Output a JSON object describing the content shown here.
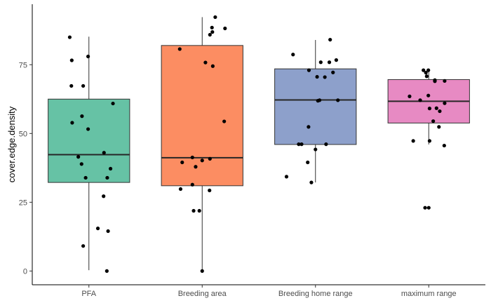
{
  "chart_data": {
    "type": "box",
    "xlabel": "",
    "ylabel": "cover.edge.density",
    "ylim": [
      -5,
      97
    ],
    "yticks": [
      0,
      25,
      50,
      75
    ],
    "grid": false,
    "legend": "none",
    "categories": [
      "PFA",
      "Breeding area",
      "Breeding home range",
      "maximum range"
    ],
    "colors": [
      "#66c2a5",
      "#fc8d62",
      "#8da0cb",
      "#e78ac3"
    ],
    "boxes": [
      {
        "min": 0.3,
        "q1": 32.2,
        "median": 42.3,
        "q3": 62.5,
        "max": 85.2
      },
      {
        "min": 0.0,
        "q1": 31.0,
        "median": 41.2,
        "q3": 82.0,
        "max": 92.3
      },
      {
        "min": 32.2,
        "q1": 46.0,
        "median": 62.2,
        "q3": 73.5,
        "max": 84.0
      },
      {
        "min": 46.0,
        "q1": 53.8,
        "median": 61.7,
        "q3": 69.6,
        "max": 73.0
      }
    ],
    "points": [
      {
        "group": 0,
        "x": -0.47,
        "y": 85.0
      },
      {
        "group": 0,
        "x": -0.42,
        "y": 76.6
      },
      {
        "group": 0,
        "x": -0.02,
        "y": 78.0
      },
      {
        "group": 0,
        "x": -0.43,
        "y": 67.3
      },
      {
        "group": 0,
        "x": -0.14,
        "y": 67.3
      },
      {
        "group": 0,
        "x": 0.59,
        "y": 60.9
      },
      {
        "group": 0,
        "x": -0.17,
        "y": 56.3
      },
      {
        "group": 0,
        "x": -0.41,
        "y": 53.9
      },
      {
        "group": 0,
        "x": -0.02,
        "y": 51.6
      },
      {
        "group": 0,
        "x": 0.37,
        "y": 43.0
      },
      {
        "group": 0,
        "x": -0.26,
        "y": 41.5
      },
      {
        "group": 0,
        "x": -0.18,
        "y": 38.9
      },
      {
        "group": 0,
        "x": 0.53,
        "y": 37.2
      },
      {
        "group": 0,
        "x": -0.08,
        "y": 33.9
      },
      {
        "group": 0,
        "x": 0.45,
        "y": 33.9
      },
      {
        "group": 0,
        "x": 0.36,
        "y": 27.2
      },
      {
        "group": 0,
        "x": 0.22,
        "y": 15.5
      },
      {
        "group": 0,
        "x": 0.47,
        "y": 14.5
      },
      {
        "group": 0,
        "x": -0.14,
        "y": 9.1
      },
      {
        "group": 0,
        "x": 0.44,
        "y": 0.0
      },
      {
        "group": 1,
        "x": 0.32,
        "y": 92.3
      },
      {
        "group": 1,
        "x": 0.24,
        "y": 88.5
      },
      {
        "group": 1,
        "x": 0.56,
        "y": 88.2
      },
      {
        "group": 1,
        "x": 0.25,
        "y": 86.9
      },
      {
        "group": 1,
        "x": 0.19,
        "y": 85.9
      },
      {
        "group": 1,
        "x": -0.55,
        "y": 80.7
      },
      {
        "group": 1,
        "x": 0.08,
        "y": 75.8
      },
      {
        "group": 1,
        "x": 0.26,
        "y": 74.5
      },
      {
        "group": 1,
        "x": 0.54,
        "y": 54.4
      },
      {
        "group": 1,
        "x": -0.24,
        "y": 41.3
      },
      {
        "group": 1,
        "x": 0.19,
        "y": 40.8
      },
      {
        "group": 1,
        "x": 0.0,
        "y": 40.2
      },
      {
        "group": 1,
        "x": -0.49,
        "y": 39.5
      },
      {
        "group": 1,
        "x": -0.16,
        "y": 37.9
      },
      {
        "group": 1,
        "x": -0.24,
        "y": 31.4
      },
      {
        "group": 1,
        "x": -0.53,
        "y": 29.8
      },
      {
        "group": 1,
        "x": 0.18,
        "y": 29.3
      },
      {
        "group": 1,
        "x": -0.21,
        "y": 21.9
      },
      {
        "group": 1,
        "x": -0.07,
        "y": 21.9
      },
      {
        "group": 1,
        "x": 0.0,
        "y": 0.0
      },
      {
        "group": 2,
        "x": 0.36,
        "y": 84.1
      },
      {
        "group": 2,
        "x": -0.55,
        "y": 78.7
      },
      {
        "group": 2,
        "x": 0.51,
        "y": 76.7
      },
      {
        "group": 2,
        "x": 0.13,
        "y": 75.9
      },
      {
        "group": 2,
        "x": 0.34,
        "y": 75.9
      },
      {
        "group": 2,
        "x": -0.16,
        "y": 73.0
      },
      {
        "group": 2,
        "x": 0.43,
        "y": 72.2
      },
      {
        "group": 2,
        "x": 0.04,
        "y": 70.6
      },
      {
        "group": 2,
        "x": 0.23,
        "y": 70.5
      },
      {
        "group": 2,
        "x": 0.1,
        "y": 62.1
      },
      {
        "group": 2,
        "x": 0.06,
        "y": 61.9
      },
      {
        "group": 2,
        "x": 0.55,
        "y": 62.1
      },
      {
        "group": 2,
        "x": -0.17,
        "y": 52.4
      },
      {
        "group": 2,
        "x": -0.41,
        "y": 46.1
      },
      {
        "group": 2,
        "x": -0.34,
        "y": 46.1
      },
      {
        "group": 2,
        "x": 0.26,
        "y": 46.1
      },
      {
        "group": 2,
        "x": 0.0,
        "y": 44.2
      },
      {
        "group": 2,
        "x": -0.19,
        "y": 39.5
      },
      {
        "group": 2,
        "x": -0.71,
        "y": 34.3
      },
      {
        "group": 2,
        "x": -0.1,
        "y": 32.2
      },
      {
        "group": 3,
        "x": -0.13,
        "y": 73.0
      },
      {
        "group": 3,
        "x": -0.01,
        "y": 73.0
      },
      {
        "group": 3,
        "x": -0.07,
        "y": 72.1
      },
      {
        "group": 3,
        "x": -0.05,
        "y": 70.8
      },
      {
        "group": 3,
        "x": 0.15,
        "y": 69.4
      },
      {
        "group": 3,
        "x": 0.15,
        "y": 69.0
      },
      {
        "group": 3,
        "x": 0.39,
        "y": 69.1
      },
      {
        "group": 3,
        "x": -0.01,
        "y": 63.8
      },
      {
        "group": 3,
        "x": -0.47,
        "y": 63.5
      },
      {
        "group": 3,
        "x": -0.21,
        "y": 62.1
      },
      {
        "group": 3,
        "x": 0.39,
        "y": 61.0
      },
      {
        "group": 3,
        "x": 0.02,
        "y": 59.1
      },
      {
        "group": 3,
        "x": 0.19,
        "y": 59.2
      },
      {
        "group": 3,
        "x": 0.27,
        "y": 58.1
      },
      {
        "group": 3,
        "x": 0.11,
        "y": 54.5
      },
      {
        "group": 3,
        "x": 0.25,
        "y": 52.4
      },
      {
        "group": 3,
        "x": -0.38,
        "y": 47.3
      },
      {
        "group": 3,
        "x": 0.02,
        "y": 47.3
      },
      {
        "group": 3,
        "x": 0.38,
        "y": 45.6
      },
      {
        "group": 3,
        "x": -0.09,
        "y": 23.0
      },
      {
        "group": 3,
        "x": 0.0,
        "y": 23.0
      }
    ]
  }
}
